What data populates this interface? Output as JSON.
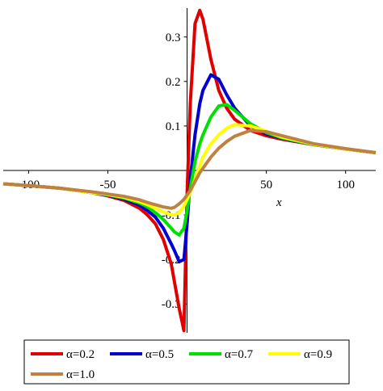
{
  "chart_data": {
    "type": "line",
    "x_label": "x",
    "x": [
      -116,
      -100,
      -80,
      -60,
      -50,
      -40,
      -30,
      -25,
      -20,
      -15,
      -10,
      -8,
      -5,
      -2,
      0,
      2,
      5,
      8,
      10,
      15,
      20,
      25,
      30,
      40,
      50,
      60,
      80,
      100,
      119
    ],
    "xlim": [
      -116,
      119
    ],
    "ylim": [
      -0.365,
      0.365
    ],
    "xticks": [
      -100,
      -50,
      50,
      100
    ],
    "yticks": [
      -0.3,
      -0.2,
      -0.1,
      0.1,
      0.2,
      0.3
    ],
    "series": [
      {
        "name": "α=0.2",
        "color": "#e00000",
        "values": [
          -0.03,
          -0.034,
          -0.04,
          -0.05,
          -0.057,
          -0.067,
          -0.085,
          -0.1,
          -0.12,
          -0.155,
          -0.21,
          -0.25,
          -0.31,
          -0.36,
          -0.05,
          0.15,
          0.33,
          0.36,
          0.34,
          0.25,
          0.18,
          0.14,
          0.115,
          0.09,
          0.078,
          0.07,
          0.058,
          0.048,
          0.04
        ]
      },
      {
        "name": "α=0.5",
        "color": "#0000d0",
        "values": [
          -0.03,
          -0.034,
          -0.04,
          -0.05,
          -0.056,
          -0.064,
          -0.078,
          -0.09,
          -0.105,
          -0.13,
          -0.165,
          -0.18,
          -0.205,
          -0.2,
          -0.12,
          -0.02,
          0.08,
          0.15,
          0.18,
          0.215,
          0.205,
          0.17,
          0.14,
          0.1,
          0.082,
          0.072,
          0.058,
          0.048,
          0.04
        ]
      },
      {
        "name": "α=0.7",
        "color": "#00e000",
        "values": [
          -0.03,
          -0.034,
          -0.04,
          -0.05,
          -0.055,
          -0.062,
          -0.073,
          -0.082,
          -0.095,
          -0.11,
          -0.13,
          -0.138,
          -0.145,
          -0.13,
          -0.09,
          -0.04,
          0.02,
          0.06,
          0.08,
          0.12,
          0.145,
          0.148,
          0.135,
          0.105,
          0.085,
          0.073,
          0.058,
          0.048,
          0.04
        ]
      },
      {
        "name": "α=0.9",
        "color": "#ffff00",
        "values": [
          -0.03,
          -0.034,
          -0.04,
          -0.05,
          -0.054,
          -0.06,
          -0.07,
          -0.077,
          -0.085,
          -0.093,
          -0.1,
          -0.1,
          -0.095,
          -0.08,
          -0.065,
          -0.05,
          -0.02,
          0.01,
          0.03,
          0.06,
          0.08,
          0.095,
          0.103,
          0.1,
          0.088,
          0.075,
          0.059,
          0.048,
          0.04
        ]
      },
      {
        "name": "α=1.0",
        "color": "#c08040",
        "values": [
          -0.03,
          -0.034,
          -0.04,
          -0.048,
          -0.053,
          -0.058,
          -0.066,
          -0.072,
          -0.077,
          -0.082,
          -0.085,
          -0.083,
          -0.075,
          -0.065,
          -0.055,
          -0.045,
          -0.025,
          -0.005,
          0.005,
          0.03,
          0.05,
          0.065,
          0.077,
          0.09,
          0.087,
          0.078,
          0.06,
          0.049,
          0.04
        ]
      }
    ]
  }
}
